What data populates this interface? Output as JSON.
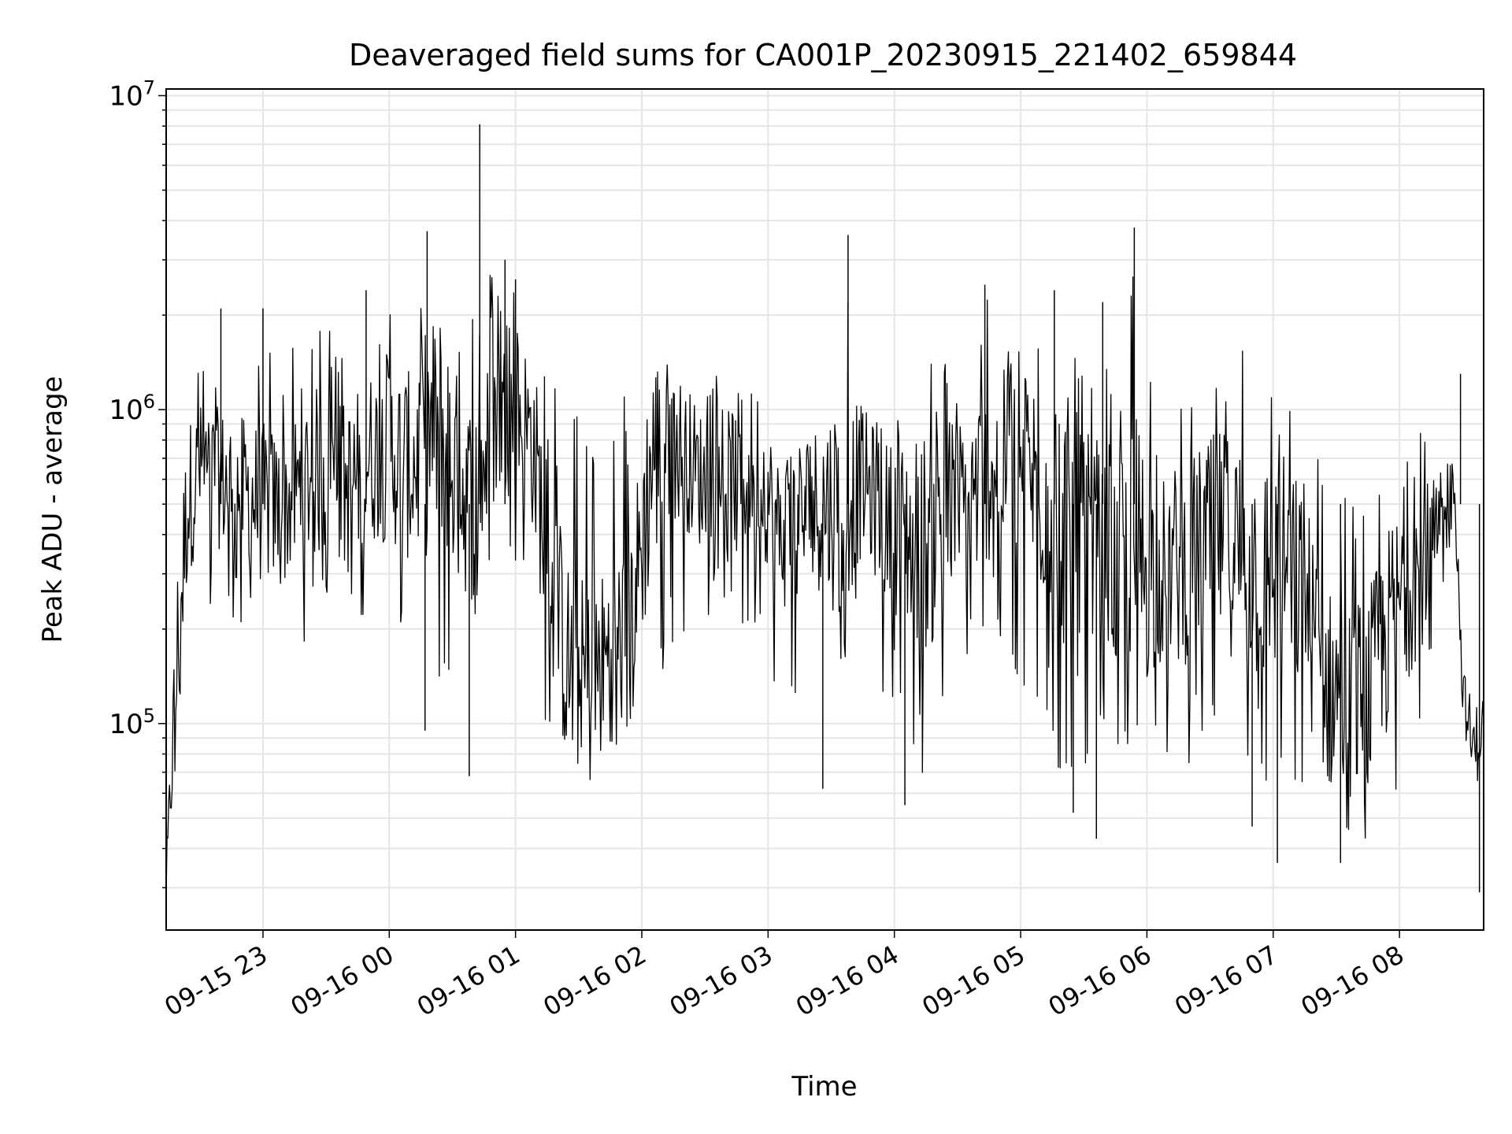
{
  "chart_data": {
    "type": "line",
    "title": "Deaveraged field sums for CA001P_20230915_221402_659844",
    "xlabel": "Time",
    "ylabel": "Peak ADU - average",
    "x_scale": "time",
    "y_scale": "log",
    "xlim": [
      "2023-09-15 22:14",
      "2023-09-16 08:40"
    ],
    "ylim": [
      22000,
      10500000
    ],
    "x_tick_labels": [
      "09-15 23",
      "09-16 00",
      "09-16 01",
      "09-16 02",
      "09-16 03",
      "09-16 04",
      "09-16 05",
      "09-16 06",
      "09-16 07",
      "09-16 08"
    ],
    "y_tick_labels": [
      {
        "base": "10",
        "exp": "5"
      },
      {
        "base": "10",
        "exp": "6"
      },
      {
        "base": "10",
        "exp": "7"
      }
    ],
    "grid": true,
    "line_color": "#000000",
    "grid_color": "#e5e5e5",
    "series": [
      {
        "x": [
          "2023-09-15 22:14",
          "2023-09-15 22:16",
          "2023-09-15 22:19",
          "2023-09-15 22:24",
          "2023-09-15 22:30",
          "2023-09-15 22:40",
          "2023-09-15 22:50",
          "2023-09-15 23:00",
          "2023-09-15 23:10",
          "2023-09-15 23:20",
          "2023-09-15 23:30",
          "2023-09-15 23:40",
          "2023-09-15 23:50",
          "2023-09-16 00:00",
          "2023-09-16 00:10",
          "2023-09-16 00:18",
          "2023-09-16 00:25",
          "2023-09-16 00:32",
          "2023-09-16 00:40",
          "2023-09-16 00:50",
          "2023-09-16 01:00",
          "2023-09-16 01:08",
          "2023-09-16 01:15",
          "2023-09-16 01:25",
          "2023-09-16 01:35",
          "2023-09-16 01:45",
          "2023-09-16 01:55",
          "2023-09-16 02:05",
          "2023-09-16 02:15",
          "2023-09-16 02:25",
          "2023-09-16 02:35",
          "2023-09-16 02:45",
          "2023-09-16 02:55",
          "2023-09-16 03:05",
          "2023-09-16 03:15",
          "2023-09-16 03:25",
          "2023-09-16 03:35",
          "2023-09-16 03:45",
          "2023-09-16 03:55",
          "2023-09-16 04:05",
          "2023-09-16 04:15",
          "2023-09-16 04:25",
          "2023-09-16 04:35",
          "2023-09-16 04:45",
          "2023-09-16 04:55",
          "2023-09-16 05:05",
          "2023-09-16 05:15",
          "2023-09-16 05:25",
          "2023-09-16 05:35",
          "2023-09-16 05:45",
          "2023-09-16 05:55",
          "2023-09-16 06:05",
          "2023-09-16 06:15",
          "2023-09-16 06:25",
          "2023-09-16 06:35",
          "2023-09-16 06:45",
          "2023-09-16 06:55",
          "2023-09-16 07:05",
          "2023-09-16 07:15",
          "2023-09-16 07:25",
          "2023-09-16 07:35",
          "2023-09-16 07:45",
          "2023-09-16 07:55",
          "2023-09-16 08:05",
          "2023-09-16 08:15",
          "2023-09-16 08:22",
          "2023-09-16 08:25",
          "2023-09-16 08:30",
          "2023-09-16 08:35",
          "2023-09-16 08:40"
        ],
        "y": [
          30000,
          60000,
          150000,
          500000,
          650000,
          600000,
          550000,
          500000,
          480000,
          600000,
          650000,
          550000,
          700000,
          750000,
          650000,
          800000,
          900000,
          600000,
          500000,
          900000,
          1000000,
          800000,
          350000,
          150000,
          130000,
          170000,
          200000,
          700000,
          800000,
          650000,
          500000,
          600000,
          700000,
          400000,
          450000,
          500000,
          500000,
          600000,
          450000,
          400000,
          380000,
          450000,
          500000,
          650000,
          700000,
          600000,
          550000,
          380000,
          320000,
          300000,
          350000,
          300000,
          320000,
          350000,
          400000,
          350000,
          300000,
          330000,
          250000,
          130000,
          120000,
          120000,
          200000,
          300000,
          350000,
          450000,
          900000,
          130000,
          80000,
          100000
        ],
        "upper_envelope": [
          60000,
          150000,
          1000000,
          1800000,
          1500000,
          1500000,
          1500000,
          2000000,
          1500000,
          1700000,
          2000000,
          2300000,
          2000000,
          2200000,
          2600000,
          3500000,
          2300000,
          2500000,
          2800000,
          2800000,
          2600000,
          2200000,
          1300000,
          1200000,
          1000000,
          800000,
          1400000,
          1400000,
          1200000,
          1000000,
          1300000,
          1500000,
          1400000,
          800000,
          900000,
          1200000,
          3500000,
          1200000,
          900000,
          1000000,
          1300000,
          1800000,
          1500000,
          2500000,
          1700000,
          1800000,
          2000000,
          2100000,
          1500000,
          1300000,
          3800000,
          1200000,
          1100000,
          1200000,
          1400000,
          1700000,
          1300000,
          1100000,
          900000,
          800000,
          600000,
          700000,
          800000,
          900000,
          1000000,
          1200000,
          1300000,
          150000,
          130000,
          130000
        ],
        "lower_envelope": [
          28000,
          45000,
          70000,
          200000,
          250000,
          220000,
          200000,
          220000,
          200000,
          180000,
          180000,
          220000,
          200000,
          180000,
          200000,
          150000,
          100000,
          130000,
          200000,
          300000,
          300000,
          200000,
          80000,
          65000,
          60000,
          70000,
          80000,
          70000,
          150000,
          150000,
          200000,
          150000,
          200000,
          100000,
          90000,
          120000,
          150000,
          170000,
          110000,
          80000,
          60000,
          100000,
          150000,
          200000,
          150000,
          100000,
          70000,
          55000,
          60000,
          80000,
          80000,
          90000,
          70000,
          70000,
          80000,
          70000,
          60000,
          60000,
          50000,
          50000,
          45000,
          40000,
          50000,
          60000,
          150000,
          300000,
          400000,
          80000,
          35000,
          60000
        ]
      }
    ],
    "annotated_spikes": [
      {
        "x": "2023-09-15 22:40",
        "y": 2100000
      },
      {
        "x": "2023-09-15 23:00",
        "y": 2100000
      },
      {
        "x": "2023-09-15 23:49",
        "y": 2400000
      },
      {
        "x": "2023-09-16 00:18",
        "y": 3700000
      },
      {
        "x": "2023-09-16 00:43",
        "y": 8100000
      },
      {
        "x": "2023-09-16 00:55",
        "y": 3000000
      },
      {
        "x": "2023-09-16 01:00",
        "y": 2600000
      },
      {
        "x": "2023-09-16 03:38",
        "y": 3600000
      },
      {
        "x": "2023-09-16 04:43",
        "y": 2500000
      },
      {
        "x": "2023-09-16 05:16",
        "y": 2400000
      },
      {
        "x": "2023-09-16 05:39",
        "y": 2200000
      },
      {
        "x": "2023-09-16 05:54",
        "y": 3800000
      },
      {
        "x": "2023-09-16 08:29",
        "y": 1300000
      }
    ],
    "annotated_dips": [
      {
        "x": "2023-09-16 00:17",
        "y": 95000
      },
      {
        "x": "2023-09-16 00:38",
        "y": 68000
      },
      {
        "x": "2023-09-16 03:26",
        "y": 62000
      },
      {
        "x": "2023-09-16 04:05",
        "y": 55000
      },
      {
        "x": "2023-09-16 05:25",
        "y": 52000
      },
      {
        "x": "2023-09-16 05:36",
        "y": 43000
      },
      {
        "x": "2023-09-16 06:50",
        "y": 47000
      },
      {
        "x": "2023-09-16 07:02",
        "y": 36000
      },
      {
        "x": "2023-09-16 07:32",
        "y": 36000
      },
      {
        "x": "2023-09-16 08:38",
        "y": 29000
      }
    ]
  }
}
